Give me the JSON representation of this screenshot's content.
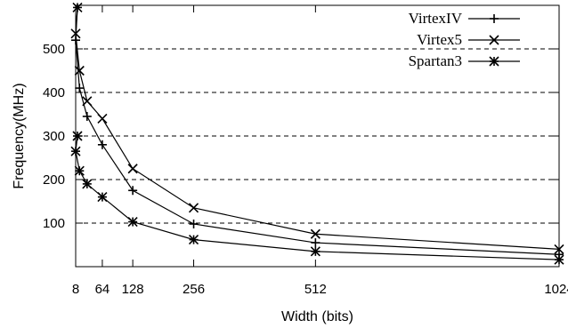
{
  "chart_data": {
    "type": "line",
    "xlabel": "Width (bits)",
    "ylabel": "Frequency(MHz)",
    "x_ticks": [
      8,
      64,
      128,
      256,
      512,
      1024
    ],
    "y_ticks": [
      100,
      200,
      300,
      400,
      500
    ],
    "xlim": [
      8,
      1024
    ],
    "ylim": [
      0,
      600
    ],
    "grid": "horizontal dashed at y ticks",
    "legend_position": "top-right",
    "series": [
      {
        "name": "VirtexIV",
        "marker": "plus",
        "x": [
          1,
          8,
          16,
          32,
          64,
          128,
          256,
          512,
          1024
        ],
        "y": [
          595,
          520,
          410,
          345,
          280,
          175,
          98,
          55,
          28
        ]
      },
      {
        "name": "Virtex5",
        "marker": "cross",
        "x": [
          1,
          8,
          16,
          32,
          64,
          128,
          256,
          512,
          1024
        ],
        "y": [
          595,
          535,
          450,
          380,
          340,
          225,
          135,
          75,
          40
        ]
      },
      {
        "name": "Spartan3",
        "marker": "star",
        "x": [
          1,
          8,
          16,
          32,
          64,
          128,
          256,
          512,
          1024
        ],
        "y": [
          300,
          265,
          220,
          190,
          160,
          103,
          62,
          35,
          16
        ]
      }
    ]
  }
}
